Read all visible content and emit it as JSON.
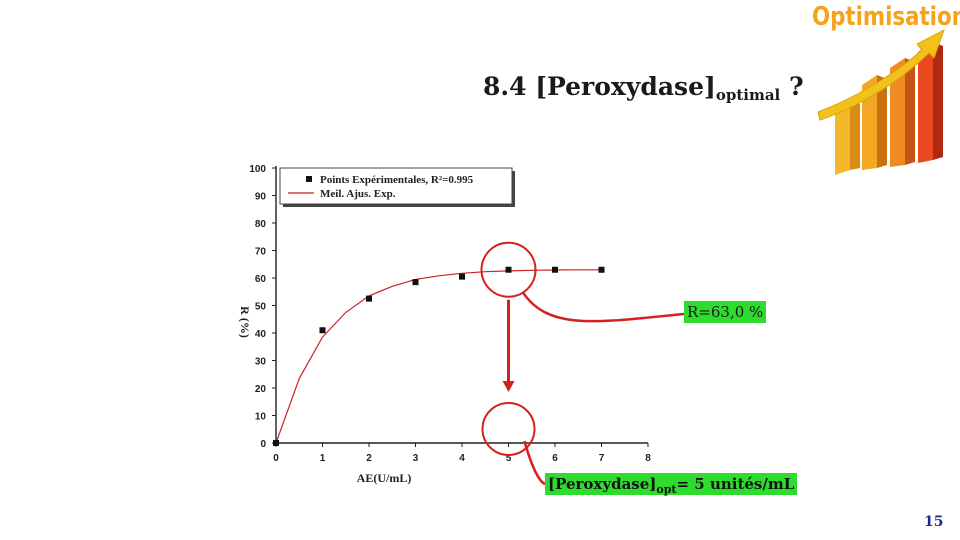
{
  "logo": {
    "word": "Optimisation",
    "icon": "rising-bar-chart-with-arrow-icon",
    "colors": {
      "text": "#f6a21a",
      "bars_light": "#f6c830",
      "bars_dark": "#e0241b",
      "arrow": "#f2c21a"
    }
  },
  "title": {
    "main": "8.4 [Peroxydase]",
    "sub": "optimal",
    "suffix": " ?"
  },
  "annotations": {
    "r_value": "R=63,0 %",
    "peroxydase_main": "[Peroxydase]",
    "peroxydase_sub": "opt",
    "peroxydase_rest": "= 5 unités/mL",
    "highlight_color": "#2ddc2d",
    "callout_color": "#d42020"
  },
  "page_number": "15",
  "chart_data": {
    "type": "scatter",
    "xlabel": "AE(U/mL)",
    "ylabel": "R (%)",
    "xlim": [
      0,
      8
    ],
    "ylim": [
      0,
      100
    ],
    "x_ticks": [
      "0",
      "1",
      "2",
      "3",
      "4",
      "5",
      "6",
      "7",
      "8"
    ],
    "y_ticks": [
      "0",
      "10",
      "20",
      "30",
      "40",
      "50",
      "60",
      "70",
      "80",
      "90",
      "100"
    ],
    "grid": false,
    "legend_position": "top-left",
    "series": [
      {
        "name": "Points Expérimentales, R²=0.995",
        "kind": "points",
        "color": "#111111",
        "points": [
          [
            0,
            0
          ],
          [
            1,
            41
          ],
          [
            2,
            52.5
          ],
          [
            3,
            58.5
          ],
          [
            4,
            60.5
          ],
          [
            5,
            63
          ],
          [
            6,
            63
          ],
          [
            7,
            63
          ]
        ]
      },
      {
        "name": "Meil. Ajus. Exp.",
        "kind": "line",
        "color": "#cc2222",
        "points": [
          [
            0,
            0
          ],
          [
            0.5,
            23.5
          ],
          [
            1,
            38.5
          ],
          [
            1.5,
            47.5
          ],
          [
            2,
            53.5
          ],
          [
            2.5,
            57
          ],
          [
            3,
            59.5
          ],
          [
            3.5,
            60.8
          ],
          [
            4,
            61.7
          ],
          [
            4.5,
            62.3
          ],
          [
            5,
            62.6
          ],
          [
            5.5,
            62.8
          ],
          [
            6,
            62.9
          ],
          [
            6.5,
            63
          ],
          [
            7,
            63
          ]
        ]
      }
    ]
  }
}
